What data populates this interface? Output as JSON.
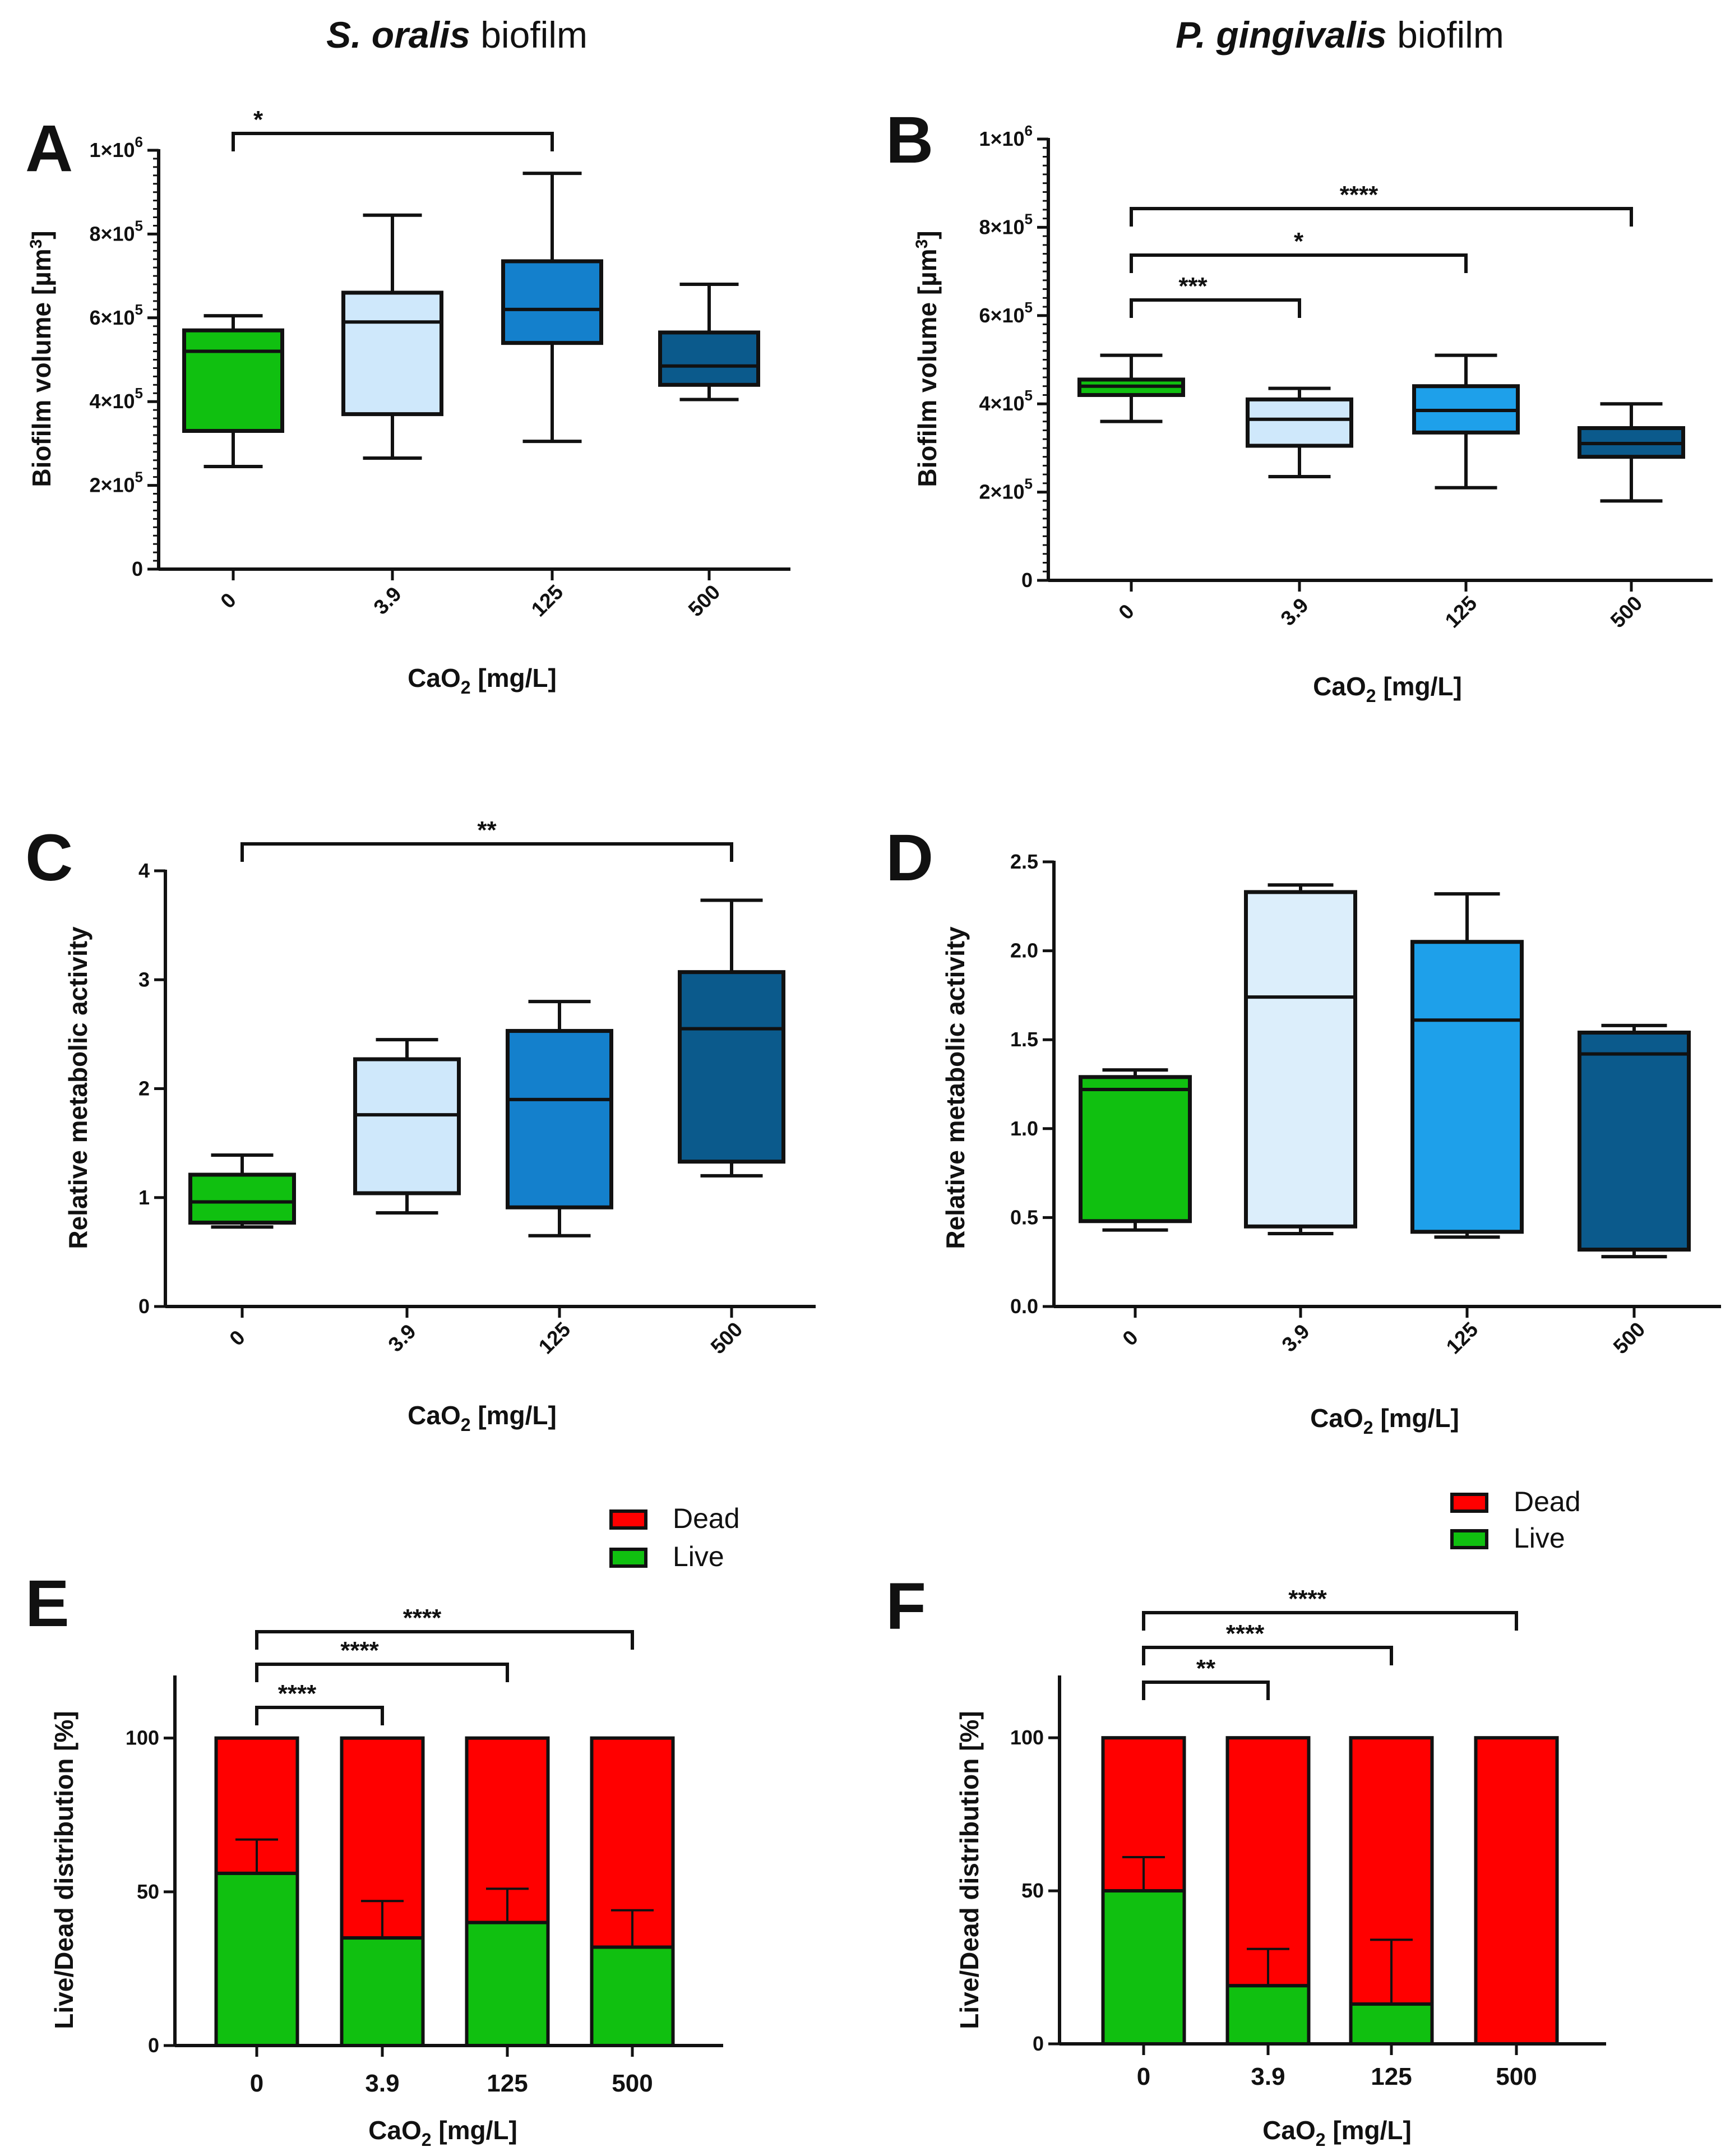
{
  "columns": {
    "left": {
      "species": "S. oralis",
      "suffix": "biofilm"
    },
    "right": {
      "species": "P. gingivalis",
      "suffix": "biofilm"
    }
  },
  "colors": {
    "green": "#10c010",
    "light_blue": "#cfe8fb",
    "mid_blue": "#1480cc",
    "mid_blue_d": "#1ea0ea",
    "dark_blue": "#0b5a8c",
    "dead_red": "#ff0000",
    "live_green": "#10c010"
  },
  "chart_data": [
    {
      "id": "A",
      "type": "box",
      "title": "S. oralis biofilm",
      "xlabel_main": "CaO",
      "xlabel_sub": "2",
      "xlabel_unit": " [mg/L]",
      "ylabel_main": "Biofilm volume [µm",
      "ylabel_sup": "3",
      "ylabel_end": "]",
      "ylim": [
        0,
        1000000
      ],
      "yticks": [
        {
          "v": 0,
          "m": "0",
          "e": ""
        },
        {
          "v": 200000,
          "m": "2×10",
          "e": "5"
        },
        {
          "v": 400000,
          "m": "4×10",
          "e": "5"
        },
        {
          "v": 600000,
          "m": "6×10",
          "e": "5"
        },
        {
          "v": 800000,
          "m": "8×10",
          "e": "5"
        },
        {
          "v": 1000000,
          "m": "1×10",
          "e": "6"
        }
      ],
      "categories": [
        "0",
        "3.9",
        "125",
        "500"
      ],
      "boxes": [
        {
          "min": 245000,
          "q1": 330000,
          "median": 520000,
          "q3": 570000,
          "max": 605000,
          "color": "#10c010"
        },
        {
          "min": 265000,
          "q1": 370000,
          "median": 590000,
          "q3": 660000,
          "max": 845000,
          "color": "#cfe8fb"
        },
        {
          "min": 305000,
          "q1": 540000,
          "median": 620000,
          "q3": 735000,
          "max": 945000,
          "color": "#1480cc"
        },
        {
          "min": 405000,
          "q1": 440000,
          "median": 485000,
          "q3": 565000,
          "max": 680000,
          "color": "#0b5a8c"
        }
      ],
      "significance": [
        {
          "from": 0,
          "to": 2,
          "label": "*"
        }
      ]
    },
    {
      "id": "B",
      "type": "box",
      "title": "P. gingivalis biofilm",
      "xlabel_main": "CaO",
      "xlabel_sub": "2",
      "xlabel_unit": " [mg/L]",
      "ylabel_main": "Biofilm volume [µm",
      "ylabel_sup": "3",
      "ylabel_end": "]",
      "ylim": [
        0,
        1000000
      ],
      "yticks": [
        {
          "v": 0,
          "m": "0",
          "e": ""
        },
        {
          "v": 200000,
          "m": "2×10",
          "e": "5"
        },
        {
          "v": 400000,
          "m": "4×10",
          "e": "5"
        },
        {
          "v": 600000,
          "m": "6×10",
          "e": "5"
        },
        {
          "v": 800000,
          "m": "8×10",
          "e": "5"
        },
        {
          "v": 1000000,
          "m": "1×10",
          "e": "6"
        }
      ],
      "categories": [
        "0",
        "3.9",
        "125",
        "500"
      ],
      "boxes": [
        {
          "min": 360000,
          "q1": 420000,
          "median": 440000,
          "q3": 455000,
          "max": 510000,
          "color": "#10c010"
        },
        {
          "min": 235000,
          "q1": 305000,
          "median": 365000,
          "q3": 410000,
          "max": 435000,
          "color": "#cfe8fb"
        },
        {
          "min": 210000,
          "q1": 335000,
          "median": 385000,
          "q3": 440000,
          "max": 510000,
          "color": "#1ea0ea"
        },
        {
          "min": 180000,
          "q1": 280000,
          "median": 310000,
          "q3": 345000,
          "max": 400000,
          "color": "#0b5a8c"
        }
      ],
      "significance": [
        {
          "from": 0,
          "to": 1,
          "label": "***"
        },
        {
          "from": 0,
          "to": 2,
          "label": "*"
        },
        {
          "from": 0,
          "to": 3,
          "label": "****"
        }
      ]
    },
    {
      "id": "C",
      "type": "box",
      "xlabel_main": "CaO",
      "xlabel_sub": "2",
      "xlabel_unit": " [mg/L]",
      "ylabel_main": "Relative metabolic activity",
      "ylim": [
        0,
        4
      ],
      "yticks": [
        {
          "v": 0,
          "m": "0",
          "e": ""
        },
        {
          "v": 1,
          "m": "1",
          "e": ""
        },
        {
          "v": 2,
          "m": "2",
          "e": ""
        },
        {
          "v": 3,
          "m": "3",
          "e": ""
        },
        {
          "v": 4,
          "m": "4",
          "e": ""
        }
      ],
      "categories": [
        "0",
        "3.9",
        "125",
        "500"
      ],
      "boxes": [
        {
          "min": 0.73,
          "q1": 0.77,
          "median": 0.96,
          "q3": 1.21,
          "max": 1.39,
          "color": "#10c010"
        },
        {
          "min": 0.86,
          "q1": 1.04,
          "median": 1.76,
          "q3": 2.27,
          "max": 2.45,
          "color": "#cfe8fb"
        },
        {
          "min": 0.65,
          "q1": 0.91,
          "median": 1.9,
          "q3": 2.53,
          "max": 2.8,
          "color": "#1480cc"
        },
        {
          "min": 1.2,
          "q1": 1.33,
          "median": 2.55,
          "q3": 3.07,
          "max": 3.73,
          "color": "#0b5a8c"
        }
      ],
      "significance": [
        {
          "from": 0,
          "to": 3,
          "label": "**"
        }
      ]
    },
    {
      "id": "D",
      "type": "box",
      "xlabel_main": "CaO",
      "xlabel_sub": "2",
      "xlabel_unit": " [mg/L]",
      "ylabel_main": "Relative metabolic activity",
      "ylim": [
        0,
        2.5
      ],
      "yticks": [
        {
          "v": 0,
          "m": "0.0",
          "e": ""
        },
        {
          "v": 0.5,
          "m": "0.5",
          "e": ""
        },
        {
          "v": 1.0,
          "m": "1.0",
          "e": ""
        },
        {
          "v": 1.5,
          "m": "1.5",
          "e": ""
        },
        {
          "v": 2.0,
          "m": "2.0",
          "e": ""
        },
        {
          "v": 2.5,
          "m": "2.5",
          "e": ""
        }
      ],
      "categories": [
        "0",
        "3.9",
        "125",
        "500"
      ],
      "boxes": [
        {
          "min": 0.43,
          "q1": 0.48,
          "median": 1.22,
          "q3": 1.29,
          "max": 1.33,
          "color": "#10c010"
        },
        {
          "min": 0.41,
          "q1": 0.45,
          "median": 1.74,
          "q3": 2.33,
          "max": 2.37,
          "color": "#dceefb"
        },
        {
          "min": 0.39,
          "q1": 0.42,
          "median": 1.61,
          "q3": 2.05,
          "max": 2.32,
          "color": "#1ea0ea"
        },
        {
          "min": 0.28,
          "q1": 0.32,
          "median": 1.42,
          "q3": 1.54,
          "max": 1.58,
          "color": "#0b5a8c"
        }
      ],
      "significance": []
    },
    {
      "id": "E",
      "type": "stacked-bar",
      "xlabel_main": "CaO",
      "xlabel_sub": "2",
      "xlabel_unit": " [mg/L]",
      "ylabel_main": "Live/Dead distribution [%]",
      "ylim": [
        0,
        120
      ],
      "yticks": [
        {
          "v": 0,
          "m": "0",
          "e": ""
        },
        {
          "v": 50,
          "m": "50",
          "e": ""
        },
        {
          "v": 100,
          "m": "100",
          "e": ""
        }
      ],
      "categories": [
        "0",
        "3.9",
        "125",
        "500"
      ],
      "series": [
        {
          "name": "Live",
          "values": [
            56,
            35,
            40,
            32
          ],
          "errors": [
            11,
            12,
            11,
            12
          ],
          "color": "#10c010"
        },
        {
          "name": "Dead",
          "values": [
            44,
            65,
            60,
            68
          ],
          "color": "#ff0000"
        }
      ],
      "legend": [
        "Dead",
        "Live"
      ],
      "significance": [
        {
          "from": 0,
          "to": 1,
          "label": "****"
        },
        {
          "from": 0,
          "to": 2,
          "label": "****"
        },
        {
          "from": 0,
          "to": 3,
          "label": "****"
        }
      ]
    },
    {
      "id": "F",
      "type": "stacked-bar",
      "xlabel_main": "CaO",
      "xlabel_sub": "2",
      "xlabel_unit": " [mg/L]",
      "ylabel_main": "Live/Dead distribution [%]",
      "ylim": [
        0,
        120
      ],
      "yticks": [
        {
          "v": 0,
          "m": "0",
          "e": ""
        },
        {
          "v": 50,
          "m": "50",
          "e": ""
        },
        {
          "v": 100,
          "m": "100",
          "e": ""
        }
      ],
      "categories": [
        "0",
        "3.9",
        "125",
        "500"
      ],
      "series": [
        {
          "name": "Live",
          "values": [
            50,
            19,
            13,
            0
          ],
          "errors": [
            11,
            12,
            21,
            0
          ],
          "color": "#10c010"
        },
        {
          "name": "Dead",
          "values": [
            50,
            81,
            87,
            100
          ],
          "color": "#ff0000"
        }
      ],
      "legend": [
        "Dead",
        "Live"
      ],
      "significance": [
        {
          "from": 0,
          "to": 1,
          "label": "**"
        },
        {
          "from": 0,
          "to": 2,
          "label": "****"
        },
        {
          "from": 0,
          "to": 3,
          "label": "****"
        }
      ]
    }
  ]
}
